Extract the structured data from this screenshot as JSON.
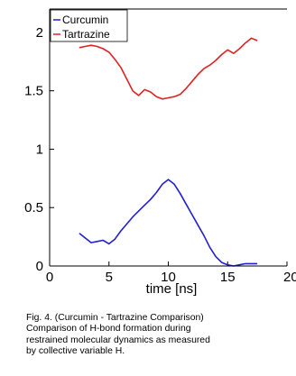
{
  "chart_data": {
    "type": "line",
    "xlabel": "time [ns]",
    "ylabel": "",
    "xlim": [
      0,
      20
    ],
    "ylim": [
      0,
      2.2
    ],
    "x_ticks": [
      "0",
      "5",
      "10",
      "15",
      "20"
    ],
    "y_ticks": [
      "0",
      "0.5",
      "1",
      "1.5",
      "2"
    ],
    "legend_position": "top-left",
    "grid": false,
    "series": [
      {
        "name": "Curcumin",
        "color": "#2020d0",
        "x": [
          2.5,
          3.0,
          3.5,
          4.0,
          4.5,
          5.0,
          5.5,
          6.0,
          6.5,
          7.0,
          7.5,
          8.0,
          8.5,
          9.0,
          9.5,
          10.0,
          10.5,
          11.0,
          11.5,
          12.0,
          12.5,
          13.0,
          13.5,
          14.0,
          14.5,
          15.0,
          15.5,
          16.0,
          16.5,
          17.0,
          17.5
        ],
        "y": [
          0.28,
          0.24,
          0.2,
          0.21,
          0.22,
          0.19,
          0.23,
          0.3,
          0.36,
          0.42,
          0.47,
          0.52,
          0.57,
          0.63,
          0.7,
          0.74,
          0.7,
          0.62,
          0.53,
          0.44,
          0.35,
          0.26,
          0.16,
          0.08,
          0.03,
          0.01,
          0.0,
          0.01,
          0.02,
          0.02,
          0.02
        ]
      },
      {
        "name": "Tartrazine",
        "color": "#dd2222",
        "x": [
          2.5,
          3.0,
          3.5,
          4.0,
          4.5,
          5.0,
          5.5,
          6.0,
          6.5,
          7.0,
          7.5,
          8.0,
          8.5,
          9.0,
          9.5,
          10.0,
          10.5,
          11.0,
          11.5,
          12.0,
          12.5,
          13.0,
          13.5,
          14.0,
          14.5,
          15.0,
          15.5,
          16.0,
          16.5,
          17.0,
          17.5
        ],
        "y": [
          1.87,
          1.88,
          1.89,
          1.88,
          1.86,
          1.83,
          1.77,
          1.7,
          1.6,
          1.5,
          1.46,
          1.51,
          1.49,
          1.45,
          1.43,
          1.44,
          1.45,
          1.47,
          1.52,
          1.58,
          1.64,
          1.69,
          1.72,
          1.76,
          1.81,
          1.85,
          1.82,
          1.86,
          1.91,
          1.95,
          1.93
        ]
      }
    ]
  },
  "caption": {
    "lines": [
      "Fig. 4. (Curcumin - Tartrazine Comparison)",
      "Comparison of H-bond formation during",
      "restrained molecular dynamics as measured",
      "by collective variable H."
    ]
  }
}
